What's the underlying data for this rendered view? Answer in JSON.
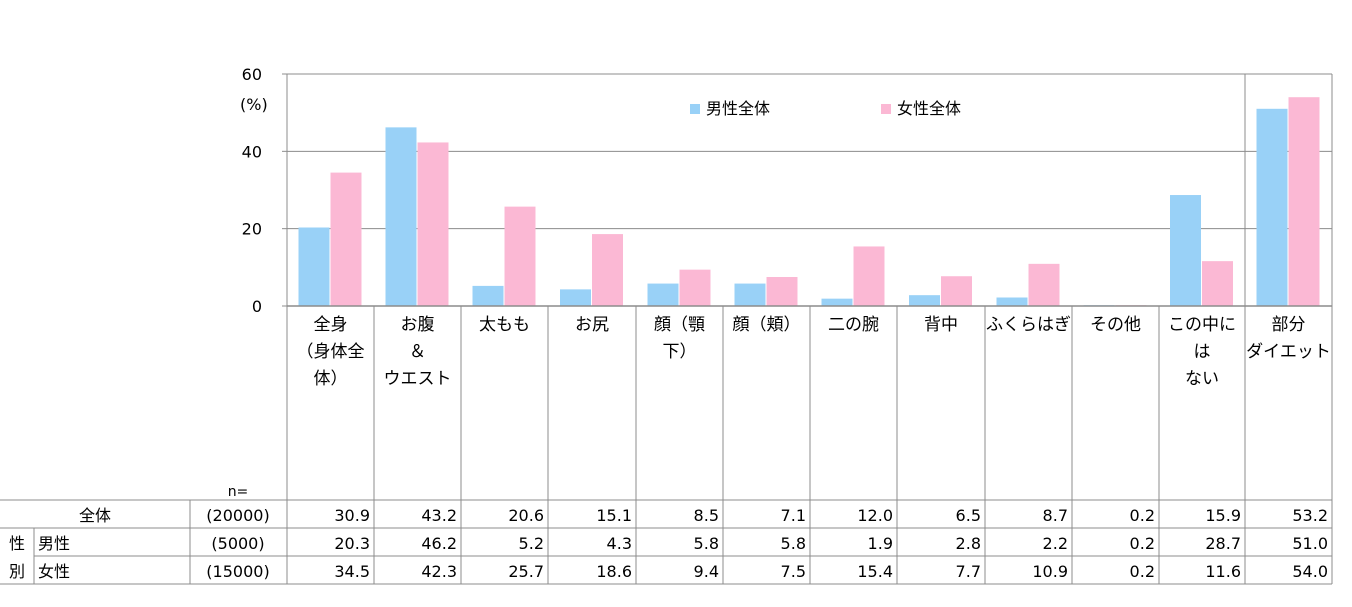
{
  "chart_data": {
    "type": "bar",
    "yaxis": {
      "unit": "(%)",
      "ylim": [
        0,
        60
      ],
      "ticks": [
        "0",
        "20",
        "40",
        "60"
      ]
    },
    "legend": {
      "placement": "top-center",
      "entries": [
        "男性全体",
        "女性全体"
      ]
    },
    "categories": [
      [
        "全身",
        "（身体全",
        "体）"
      ],
      [
        "お腹",
        "＆",
        "ウエスト"
      ],
      [
        "太もも"
      ],
      [
        "お尻"
      ],
      [
        "顔（顎",
        "下）"
      ],
      [
        "顔（頬）"
      ],
      [
        "二の腕"
      ],
      [
        "背中"
      ],
      [
        "ふくらはぎ"
      ],
      [
        "その他"
      ],
      [
        "この中に",
        "は",
        "ない"
      ],
      [
        "部分",
        "ダイエット"
      ]
    ],
    "series": [
      {
        "name": "男性全体",
        "color": "#99d1f7",
        "values": [
          20.3,
          46.2,
          5.2,
          4.3,
          5.8,
          5.8,
          1.9,
          2.8,
          2.2,
          0.2,
          28.7,
          51.0
        ]
      },
      {
        "name": "女性全体",
        "color": "#fbb8d4",
        "values": [
          34.5,
          42.3,
          25.7,
          18.6,
          9.4,
          7.5,
          15.4,
          7.7,
          10.9,
          0.2,
          11.6,
          54.0
        ]
      }
    ],
    "grid": true,
    "table": {
      "n_label": "n=",
      "group_label": [
        "性",
        "別"
      ],
      "rows": [
        {
          "label": "全体",
          "n": "(20000)",
          "values": [
            "30.9",
            "43.2",
            "20.6",
            "15.1",
            "8.5",
            "7.1",
            "12.0",
            "6.5",
            "8.7",
            "0.2",
            "15.9",
            "53.2"
          ]
        },
        {
          "label": "男性",
          "n": "(5000)",
          "values": [
            "20.3",
            "46.2",
            "5.2",
            "4.3",
            "5.8",
            "5.8",
            "1.9",
            "2.8",
            "2.2",
            "0.2",
            "28.7",
            "51.0"
          ]
        },
        {
          "label": "女性",
          "n": "(15000)",
          "values": [
            "34.5",
            "42.3",
            "25.7",
            "18.6",
            "9.4",
            "7.5",
            "15.4",
            "7.7",
            "10.9",
            "0.2",
            "11.6",
            "54.0"
          ]
        }
      ]
    }
  }
}
